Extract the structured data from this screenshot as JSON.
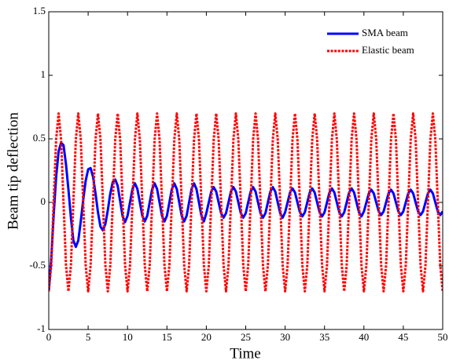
{
  "chart_data": {
    "type": "line",
    "xlabel": "Time",
    "ylabel": "Beam tip deflection",
    "xlim": [
      0,
      50
    ],
    "ylim": [
      -1,
      1.5
    ],
    "xticks": [
      0,
      5,
      10,
      15,
      20,
      25,
      30,
      35,
      40,
      45,
      50
    ],
    "yticks": [
      -1,
      -0.5,
      0,
      0.5,
      1,
      1.5
    ],
    "grid": false,
    "legend": "upper right",
    "x": [
      0,
      0.3125,
      0.625,
      0.9375,
      1.25,
      1.5625,
      1.875,
      2.1875,
      2.5,
      2.8125,
      3.125,
      3.4375,
      3.75,
      4.0625,
      4.375,
      4.6875,
      5,
      5.3125,
      5.625,
      5.9375,
      6.25,
      6.5625,
      6.875,
      7.1875,
      7.5,
      7.8125,
      8.125,
      8.4375,
      8.75,
      9.0625,
      9.375,
      9.6875,
      10,
      10.3125,
      10.625,
      10.9375,
      11.25,
      11.5625,
      11.875,
      12.1875,
      12.5,
      12.8125,
      13.125,
      13.4375,
      13.75,
      14.0625,
      14.375,
      14.6875,
      15,
      15.3125,
      15.625,
      15.9375,
      16.25,
      16.5625,
      16.875,
      17.1875,
      17.5,
      17.8125,
      18.125,
      18.4375,
      18.75,
      19.0625,
      19.375,
      19.6875,
      20,
      20.3125,
      20.625,
      20.9375,
      21.25,
      21.5625,
      21.875,
      22.1875,
      22.5,
      22.8125,
      23.125,
      23.4375,
      23.75,
      24.0625,
      24.375,
      24.6875,
      25,
      25.3125,
      25.625,
      25.9375,
      26.25,
      26.5625,
      26.875,
      27.1875,
      27.5,
      27.8125,
      28.125,
      28.4375,
      28.75,
      29.0625,
      29.375,
      29.6875,
      30,
      30.3125,
      30.625,
      30.9375,
      31.25,
      31.5625,
      31.875,
      32.1875,
      32.5,
      32.8125,
      33.125,
      33.4375,
      33.75,
      34.0625,
      34.375,
      34.6875,
      35,
      35.3125,
      35.625,
      35.9375,
      36.25,
      36.5625,
      36.875,
      37.1875,
      37.5,
      37.8125,
      38.125,
      38.4375,
      38.75,
      39.0625,
      39.375,
      39.6875,
      40,
      40.3125,
      40.625,
      40.9375,
      41.25,
      41.5625,
      41.875,
      42.1875,
      42.5,
      42.8125,
      43.125,
      43.4375,
      43.75,
      44.0625,
      44.375,
      44.6875,
      45,
      45.3125,
      45.625,
      45.9375,
      46.25,
      46.5625,
      46.875,
      47.1875,
      47.5,
      47.8125,
      48.125,
      48.4375,
      48.75,
      49.0625,
      49.375,
      49.6875,
      50
    ],
    "series": [
      {
        "name": "SMA beam",
        "color": "#0000ff",
        "line_style": "solid",
        "values": [
          -0.7,
          -0.45,
          -0.1,
          0.2,
          0.4,
          0.47,
          0.45,
          0.3,
          0.1,
          -0.12,
          -0.3,
          -0.35,
          -0.3,
          -0.15,
          0.02,
          0.17,
          0.26,
          0.27,
          0.2,
          0.07,
          -0.08,
          -0.19,
          -0.22,
          -0.17,
          -0.06,
          0.07,
          0.16,
          0.18,
          0.13,
          0.01,
          -0.11,
          -0.155,
          -0.105,
          0,
          0.105,
          0.15,
          0.105,
          0,
          -0.105,
          -0.15,
          -0.105,
          0,
          0.105,
          0.15,
          0.105,
          0,
          -0.105,
          -0.15,
          -0.105,
          0,
          0.105,
          0.15,
          0.105,
          0,
          -0.105,
          -0.15,
          -0.105,
          0,
          0.105,
          0.15,
          0.105,
          0,
          -0.105,
          -0.15,
          -0.085,
          0,
          0.085,
          0.12,
          0.085,
          0,
          -0.085,
          -0.12,
          -0.085,
          0,
          0.085,
          0.12,
          0.085,
          0,
          -0.085,
          -0.12,
          -0.085,
          0,
          0.085,
          0.12,
          0.085,
          0,
          -0.085,
          -0.12,
          -0.085,
          0,
          0.085,
          0.12,
          0.085,
          0,
          -0.085,
          -0.12,
          -0.078,
          0,
          0.078,
          0.11,
          0.078,
          0,
          -0.078,
          -0.11,
          -0.078,
          0,
          0.078,
          0.11,
          0.078,
          0,
          -0.078,
          -0.11,
          -0.078,
          0,
          0.078,
          0.11,
          0.078,
          0,
          -0.078,
          -0.11,
          -0.078,
          0,
          0.078,
          0.11,
          0.078,
          0,
          -0.078,
          -0.11,
          -0.071,
          0,
          0.071,
          0.1,
          0.071,
          0,
          -0.071,
          -0.1,
          -0.071,
          0,
          0.071,
          0.1,
          0.071,
          0,
          -0.071,
          -0.1,
          -0.071,
          0,
          0.071,
          0.1,
          0.071,
          0,
          -0.071,
          -0.1,
          -0.071,
          0,
          0.071,
          0.1,
          0.071,
          0,
          -0.071,
          -0.1,
          -0.071
        ]
      },
      {
        "name": "Elastic beam",
        "color": "#ff0000",
        "line_style": "dotted",
        "values": [
          -0.7,
          -0.495,
          0,
          0.495,
          0.7,
          0.495,
          0,
          -0.495,
          -0.7,
          -0.495,
          0,
          0.495,
          0.7,
          0.495,
          0,
          -0.495,
          -0.7,
          -0.495,
          0,
          0.495,
          0.7,
          0.495,
          0,
          -0.495,
          -0.7,
          -0.495,
          0,
          0.495,
          0.7,
          0.495,
          0,
          -0.495,
          -0.7,
          -0.495,
          0,
          0.495,
          0.7,
          0.495,
          0,
          -0.495,
          -0.7,
          -0.495,
          0,
          0.495,
          0.7,
          0.495,
          0,
          -0.495,
          -0.7,
          -0.495,
          0,
          0.495,
          0.7,
          0.495,
          0,
          -0.495,
          -0.7,
          -0.495,
          0,
          0.495,
          0.7,
          0.495,
          0,
          -0.495,
          -0.7,
          -0.495,
          0,
          0.495,
          0.7,
          0.495,
          0,
          -0.495,
          -0.7,
          -0.495,
          0,
          0.495,
          0.7,
          0.495,
          0,
          -0.495,
          -0.7,
          -0.495,
          0,
          0.495,
          0.7,
          0.495,
          0,
          -0.495,
          -0.7,
          -0.495,
          0,
          0.495,
          0.7,
          0.495,
          0,
          -0.495,
          -0.7,
          -0.495,
          0,
          0.495,
          0.7,
          0.495,
          0,
          -0.495,
          -0.7,
          -0.495,
          0,
          0.495,
          0.7,
          0.495,
          0,
          -0.495,
          -0.7,
          -0.495,
          0,
          0.495,
          0.7,
          0.495,
          0,
          -0.495,
          -0.7,
          -0.495,
          0,
          0.495,
          0.7,
          0.495,
          0,
          -0.495,
          -0.7,
          -0.495,
          0,
          0.495,
          0.7,
          0.495,
          0,
          -0.495,
          -0.7,
          -0.495,
          0,
          0.495,
          0.7,
          0.495,
          0,
          -0.495,
          -0.7,
          -0.495,
          0,
          0.495,
          0.7,
          0.495,
          0,
          -0.495,
          -0.7,
          -0.495,
          0,
          0.495,
          0.7,
          0.495,
          0,
          -0.495,
          -0.7
        ]
      }
    ]
  }
}
